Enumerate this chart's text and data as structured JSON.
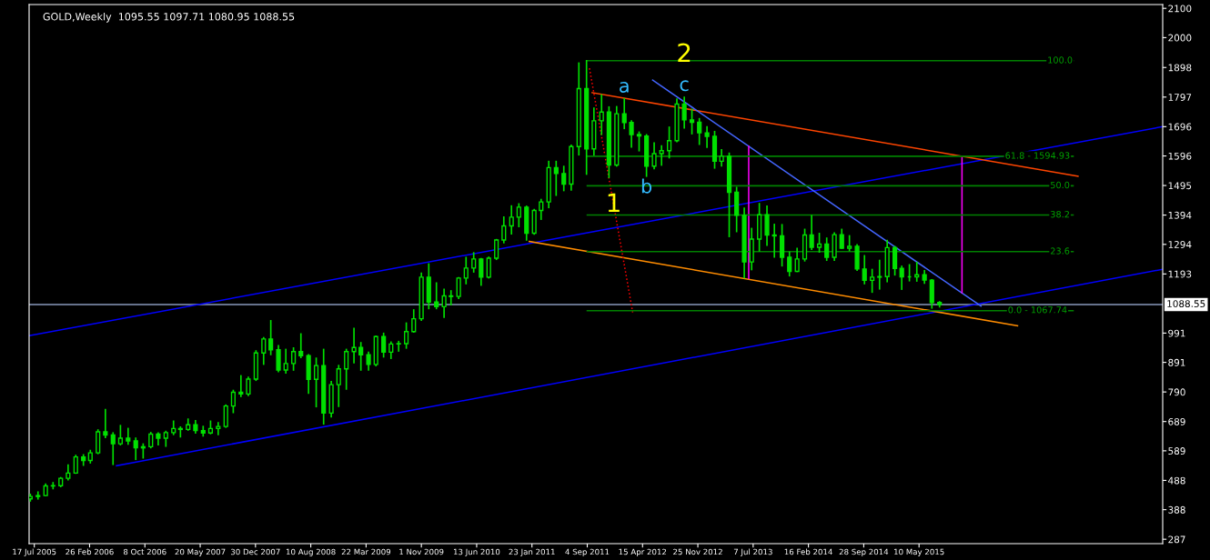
{
  "chart_data": {
    "type": "candlestick",
    "title": "GOLD,Weekly  1095.55 1097.71 1080.95 1088.55",
    "color": "#00e000",
    "x": [
      "2005-07",
      "2005-08",
      "2005-09",
      "2005-10",
      "2005-11",
      "2005-12",
      "2006-01",
      "2006-02",
      "2006-03",
      "2006-04",
      "2006-05",
      "2006-06",
      "2006-07",
      "2006-08",
      "2006-09",
      "2006-10",
      "2006-11",
      "2006-12",
      "2007-01",
      "2007-02",
      "2007-03",
      "2007-04",
      "2007-05",
      "2007-06",
      "2007-07",
      "2007-08",
      "2007-09",
      "2007-10",
      "2007-11",
      "2007-12",
      "2008-01",
      "2008-02",
      "2008-03",
      "2008-04",
      "2008-05",
      "2008-06",
      "2008-07",
      "2008-08",
      "2008-09",
      "2008-10",
      "2008-11",
      "2008-12",
      "2009-01",
      "2009-02",
      "2009-03",
      "2009-04",
      "2009-05",
      "2009-06",
      "2009-07",
      "2009-08",
      "2009-09",
      "2009-10",
      "2009-11",
      "2009-12",
      "2010-01",
      "2010-02",
      "2010-03",
      "2010-04",
      "2010-05",
      "2010-06",
      "2010-07",
      "2010-08",
      "2010-09",
      "2010-10",
      "2010-11",
      "2010-12",
      "2011-01",
      "2011-02",
      "2011-03",
      "2011-04",
      "2011-05",
      "2011-06",
      "2011-07",
      "2011-08",
      "2011-09",
      "2011-10",
      "2011-11",
      "2011-12",
      "2012-01",
      "2012-02",
      "2012-03",
      "2012-04",
      "2012-05",
      "2012-06",
      "2012-07",
      "2012-08",
      "2012-09",
      "2012-10",
      "2012-11",
      "2012-12",
      "2013-01",
      "2013-02",
      "2013-03",
      "2013-04",
      "2013-05",
      "2013-06",
      "2013-07",
      "2013-08",
      "2013-09",
      "2013-10",
      "2013-11",
      "2013-12",
      "2014-01",
      "2014-02",
      "2014-03",
      "2014-04",
      "2014-05",
      "2014-06",
      "2014-07",
      "2014-08",
      "2014-09",
      "2014-10",
      "2014-11",
      "2014-12",
      "2015-01",
      "2015-02",
      "2015-03",
      "2015-04",
      "2015-05",
      "2015-06",
      "2015-07",
      "2015-08"
    ],
    "ohlc": [
      [
        425,
        440,
        418,
        433
      ],
      [
        433,
        448,
        425,
        436
      ],
      [
        436,
        475,
        436,
        469
      ],
      [
        469,
        480,
        460,
        470
      ],
      [
        470,
        497,
        467,
        495
      ],
      [
        495,
        540,
        490,
        513
      ],
      [
        513,
        573,
        513,
        568
      ],
      [
        568,
        575,
        540,
        556
      ],
      [
        556,
        590,
        548,
        582
      ],
      [
        582,
        660,
        580,
        654
      ],
      [
        654,
        730,
        635,
        643
      ],
      [
        643,
        650,
        543,
        613
      ],
      [
        613,
        675,
        610,
        632
      ],
      [
        632,
        665,
        612,
        623
      ],
      [
        623,
        632,
        560,
        599
      ],
      [
        599,
        612,
        565,
        603
      ],
      [
        603,
        651,
        600,
        646
      ],
      [
        646,
        650,
        610,
        632
      ],
      [
        632,
        655,
        605,
        651
      ],
      [
        651,
        690,
        645,
        665
      ],
      [
        665,
        670,
        637,
        662
      ],
      [
        662,
        697,
        660,
        678
      ],
      [
        678,
        692,
        650,
        658
      ],
      [
        658,
        672,
        640,
        650
      ],
      [
        650,
        690,
        648,
        665
      ],
      [
        665,
        685,
        645,
        672
      ],
      [
        672,
        745,
        670,
        742
      ],
      [
        742,
        795,
        720,
        789
      ],
      [
        789,
        845,
        775,
        783
      ],
      [
        783,
        840,
        778,
        834
      ],
      [
        834,
        930,
        830,
        923
      ],
      [
        923,
        975,
        885,
        971
      ],
      [
        971,
        1033,
        918,
        934
      ],
      [
        934,
        948,
        860,
        865
      ],
      [
        865,
        935,
        855,
        887
      ],
      [
        887,
        940,
        865,
        928
      ],
      [
        928,
        988,
        908,
        914
      ],
      [
        914,
        917,
        786,
        833
      ],
      [
        833,
        905,
        740,
        880
      ],
      [
        880,
        935,
        681,
        718
      ],
      [
        718,
        825,
        705,
        815
      ],
      [
        815,
        880,
        741,
        869
      ],
      [
        869,
        935,
        800,
        928
      ],
      [
        928,
        1007,
        890,
        942
      ],
      [
        942,
        958,
        865,
        917
      ],
      [
        917,
        925,
        865,
        884
      ],
      [
        884,
        980,
        880,
        979
      ],
      [
        979,
        990,
        910,
        926
      ],
      [
        926,
        960,
        905,
        954
      ],
      [
        954,
        962,
        930,
        955
      ],
      [
        955,
        1025,
        940,
        996
      ],
      [
        996,
        1070,
        995,
        1040
      ],
      [
        1040,
        1195,
        1035,
        1182
      ],
      [
        1182,
        1227,
        1075,
        1097
      ],
      [
        1097,
        1162,
        1075,
        1081
      ],
      [
        1081,
        1140,
        1045,
        1118
      ],
      [
        1118,
        1135,
        1088,
        1116
      ],
      [
        1116,
        1180,
        1110,
        1179
      ],
      [
        1179,
        1249,
        1160,
        1213
      ],
      [
        1213,
        1265,
        1200,
        1244
      ],
      [
        1244,
        1245,
        1155,
        1182
      ],
      [
        1182,
        1250,
        1180,
        1247
      ],
      [
        1247,
        1310,
        1243,
        1309
      ],
      [
        1309,
        1387,
        1300,
        1357
      ],
      [
        1357,
        1425,
        1330,
        1387
      ],
      [
        1387,
        1432,
        1355,
        1421
      ],
      [
        1421,
        1424,
        1309,
        1332
      ],
      [
        1332,
        1413,
        1329,
        1410
      ],
      [
        1410,
        1447,
        1380,
        1439
      ],
      [
        1439,
        1577,
        1420,
        1556
      ],
      [
        1556,
        1577,
        1462,
        1536
      ],
      [
        1536,
        1560,
        1478,
        1500
      ],
      [
        1500,
        1632,
        1480,
        1628
      ],
      [
        1628,
        1913,
        1600,
        1826
      ],
      [
        1826,
        1921,
        1534,
        1620
      ],
      [
        1620,
        1759,
        1600,
        1716
      ],
      [
        1716,
        1804,
        1670,
        1746
      ],
      [
        1746,
        1763,
        1523,
        1565
      ],
      [
        1565,
        1764,
        1562,
        1740
      ],
      [
        1740,
        1791,
        1690,
        1710
      ],
      [
        1710,
        1715,
        1627,
        1669
      ],
      [
        1669,
        1677,
        1614,
        1664
      ],
      [
        1664,
        1668,
        1527,
        1561
      ],
      [
        1561,
        1640,
        1553,
        1604
      ],
      [
        1604,
        1630,
        1565,
        1614
      ],
      [
        1614,
        1694,
        1590,
        1648
      ],
      [
        1648,
        1790,
        1645,
        1773
      ],
      [
        1773,
        1796,
        1692,
        1719
      ],
      [
        1719,
        1755,
        1672,
        1711
      ],
      [
        1711,
        1723,
        1636,
        1675
      ],
      [
        1675,
        1695,
        1626,
        1663
      ],
      [
        1663,
        1679,
        1555,
        1578
      ],
      [
        1578,
        1617,
        1562,
        1595
      ],
      [
        1595,
        1605,
        1321,
        1472
      ],
      [
        1472,
        1488,
        1338,
        1393
      ],
      [
        1393,
        1417,
        1180,
        1234
      ],
      [
        1234,
        1348,
        1208,
        1312
      ],
      [
        1312,
        1433,
        1272,
        1395
      ],
      [
        1395,
        1424,
        1291,
        1326
      ],
      [
        1326,
        1362,
        1251,
        1323
      ],
      [
        1323,
        1361,
        1221,
        1250
      ],
      [
        1250,
        1267,
        1187,
        1202
      ],
      [
        1202,
        1280,
        1202,
        1244
      ],
      [
        1244,
        1345,
        1238,
        1326
      ],
      [
        1326,
        1392,
        1277,
        1284
      ],
      [
        1284,
        1331,
        1268,
        1295
      ],
      [
        1295,
        1315,
        1240,
        1250
      ],
      [
        1250,
        1333,
        1240,
        1327
      ],
      [
        1327,
        1345,
        1281,
        1281
      ],
      [
        1281,
        1323,
        1273,
        1287
      ],
      [
        1287,
        1292,
        1206,
        1210
      ],
      [
        1210,
        1255,
        1160,
        1171
      ],
      [
        1171,
        1208,
        1131,
        1182
      ],
      [
        1182,
        1239,
        1142,
        1184
      ],
      [
        1184,
        1307,
        1167,
        1283
      ],
      [
        1283,
        1286,
        1190,
        1212
      ],
      [
        1212,
        1219,
        1141,
        1183
      ],
      [
        1183,
        1224,
        1170,
        1183
      ],
      [
        1183,
        1232,
        1169,
        1190
      ],
      [
        1190,
        1204,
        1162,
        1172
      ],
      [
        1172,
        1173,
        1077,
        1095
      ],
      [
        1095.55,
        1097.71,
        1080.95,
        1088.55
      ]
    ],
    "series": [
      {
        "type": "line",
        "color": "#0000ff",
        "x": [
          "2005-06-26",
          "2018-01-21"
        ],
        "values": [
          982,
          1696
        ]
      },
      {
        "type": "line",
        "color": "#0000ff",
        "x": [
          "2006-06-15",
          "2018-01-21"
        ],
        "values": [
          538,
          1209
        ]
      },
      {
        "type": "line",
        "color": "#ff4500",
        "x": [
          "2011-09-24",
          "2017-02-12"
        ],
        "values": [
          1812,
          1527
        ]
      },
      {
        "type": "line",
        "color": "#ff8c00",
        "x": [
          "2011-01-12",
          "2016-06-12"
        ],
        "values": [
          1304,
          1016
        ]
      },
      {
        "type": "line",
        "color": "#4466ff",
        "x": [
          "2012-05-26",
          "2016-01-16"
        ],
        "values": [
          1855,
          1083
        ]
      },
      {
        "type": "line",
        "color": "#ff0000",
        "line_style": "dotted",
        "x": [
          "2011-09-13",
          "2012-03-06"
        ],
        "values": [
          1895,
          1062
        ]
      },
      {
        "type": "line",
        "color": "#ff00ff",
        "x": [
          "2013-06-19",
          "2013-06-19"
        ],
        "values": [
          1629,
          1178
        ]
      },
      {
        "type": "line",
        "color": "#ff00ff",
        "x": [
          "2015-10-31",
          "2015-10-31"
        ],
        "values": [
          1589,
          1129
        ]
      },
      {
        "type": "line",
        "color": "#008000",
        "x": [
          "2011-09-04",
          "2017-01-23"
        ],
        "values": [
          1921,
          1921
        ]
      },
      {
        "type": "line",
        "color": "#008000",
        "x": [
          "2011-09-04",
          "2017-01-23"
        ],
        "values": [
          1594.93,
          1594.93
        ]
      },
      {
        "type": "line",
        "color": "#008000",
        "x": [
          "2011-09-04",
          "2017-01-23"
        ],
        "values": [
          1494,
          1494
        ]
      },
      {
        "type": "line",
        "color": "#008000",
        "x": [
          "2011-09-04",
          "2017-01-23"
        ],
        "values": [
          1394,
          1394
        ]
      },
      {
        "type": "line",
        "color": "#008000",
        "x": [
          "2011-09-04",
          "2017-01-23"
        ],
        "values": [
          1269,
          1269
        ]
      },
      {
        "type": "line",
        "color": "#008000",
        "x": [
          "2011-09-04",
          "2017-01-23"
        ],
        "values": [
          1067.74,
          1067.74
        ]
      }
    ],
    "ref_lines": [
      {
        "axis": "y",
        "value": 1088.55,
        "label": "1088.55",
        "color": "#8899bb"
      }
    ],
    "annotations": [
      {
        "text": "2",
        "x": "2012-10",
        "y": 1796
      },
      {
        "text": "1",
        "x": "2011-12-20",
        "y": 1429
      },
      {
        "text": "a",
        "x": "2012-02",
        "y": 1791
      },
      {
        "text": "b",
        "x": "2012-05",
        "y": 1527
      },
      {
        "text": "c",
        "x": "2012-10",
        "y": 1796
      },
      {
        "text": "100.0",
        "x": "2016-12-01",
        "y": 1921
      },
      {
        "text": "61.8 - 1594.93",
        "x": "2016-09-01",
        "y": 1594.93
      },
      {
        "text": "50.0",
        "x": "2016-12-01",
        "y": 1494
      },
      {
        "text": "38.2",
        "x": "2016-12-01",
        "y": 1394
      },
      {
        "text": "23.6",
        "x": "2016-12-01",
        "y": 1269
      },
      {
        "text": "0.0 - 1067.74",
        "x": "2016-09-01",
        "y": 1067.74
      }
    ],
    "xlim": [
      "2005-06-26",
      "2018-01-21"
    ],
    "xticks": [
      {
        "value": "2005-07-17",
        "label": "17 Jul 2005"
      },
      {
        "value": "2006-02-26",
        "label": "26 Feb 2006"
      },
      {
        "value": "2006-10-08",
        "label": "8 Oct 2006"
      },
      {
        "value": "2007-05-20",
        "label": "20 May 2007"
      },
      {
        "value": "2007-12-30",
        "label": "30 Dec 2007"
      },
      {
        "value": "2008-08-10",
        "label": "10 Aug 2008"
      },
      {
        "value": "2009-03-22",
        "label": "22 Mar 2009"
      },
      {
        "value": "2009-11-01",
        "label": "1 Nov 2009"
      },
      {
        "value": "2010-06-13",
        "label": "13 Jun 2010"
      },
      {
        "value": "2011-01-23",
        "label": "23 Jan 2011"
      },
      {
        "value": "2011-09-04",
        "label": "4 Sep 2011"
      },
      {
        "value": "2012-04-15",
        "label": "15 Apr 2012"
      },
      {
        "value": "2012-11-25",
        "label": "25 Nov 2012"
      },
      {
        "value": "2013-07-07",
        "label": "7 Jul 2013"
      },
      {
        "value": "2014-02-16",
        "label": "16 Feb 2014"
      },
      {
        "value": "2014-09-28",
        "label": "28 Sep 2014"
      },
      {
        "value": "2015-05-10",
        "label": "10 May 2015"
      }
    ],
    "ylim": [
      272,
      2113
    ],
    "yticks": [
      287,
      388,
      488,
      589,
      689,
      790,
      891,
      991,
      1193,
      1294,
      1394,
      1495,
      1596,
      1696,
      1797,
      1898,
      2000,
      2100
    ],
    "grid": false,
    "legend": false
  }
}
